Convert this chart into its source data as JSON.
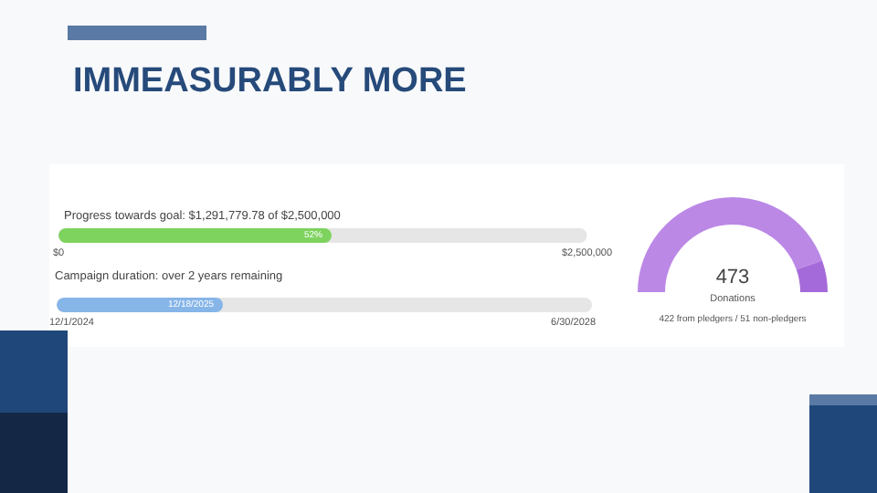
{
  "chart_data": [
    {
      "type": "bar",
      "orientation": "horizontal",
      "title": "IMMEASURABLY MORE",
      "subtitle": "Progress towards goal: $1,291,779.78 of $2,500,000",
      "categories": [
        null
      ],
      "values": [
        1291779.78
      ],
      "annotations": [
        "52%"
      ],
      "color": "#7ed35f",
      "xlim": [
        0,
        2500000
      ],
      "xticks": [
        {
          "value": 0,
          "label": "$0"
        },
        {
          "value": 2500000,
          "label": "$2,500,000"
        }
      ],
      "grid": false
    },
    {
      "type": "other",
      "title": "Campaign duration: over 2 years remaining",
      "annotations": [
        "12/1/2024",
        "12/18/2025",
        "6/30/2028"
      ],
      "color": "#86b5e8"
    },
    {
      "type": "donut",
      "categories": [
        null,
        null
      ],
      "values": [
        89.2,
        10.8
      ],
      "colors": [
        "#bb88e6",
        "#a56ad9"
      ],
      "annotations": [
        "473",
        "Donations"
      ],
      "subtitle": "422 from pledgers / 51 non-pledgers"
    }
  ]
}
